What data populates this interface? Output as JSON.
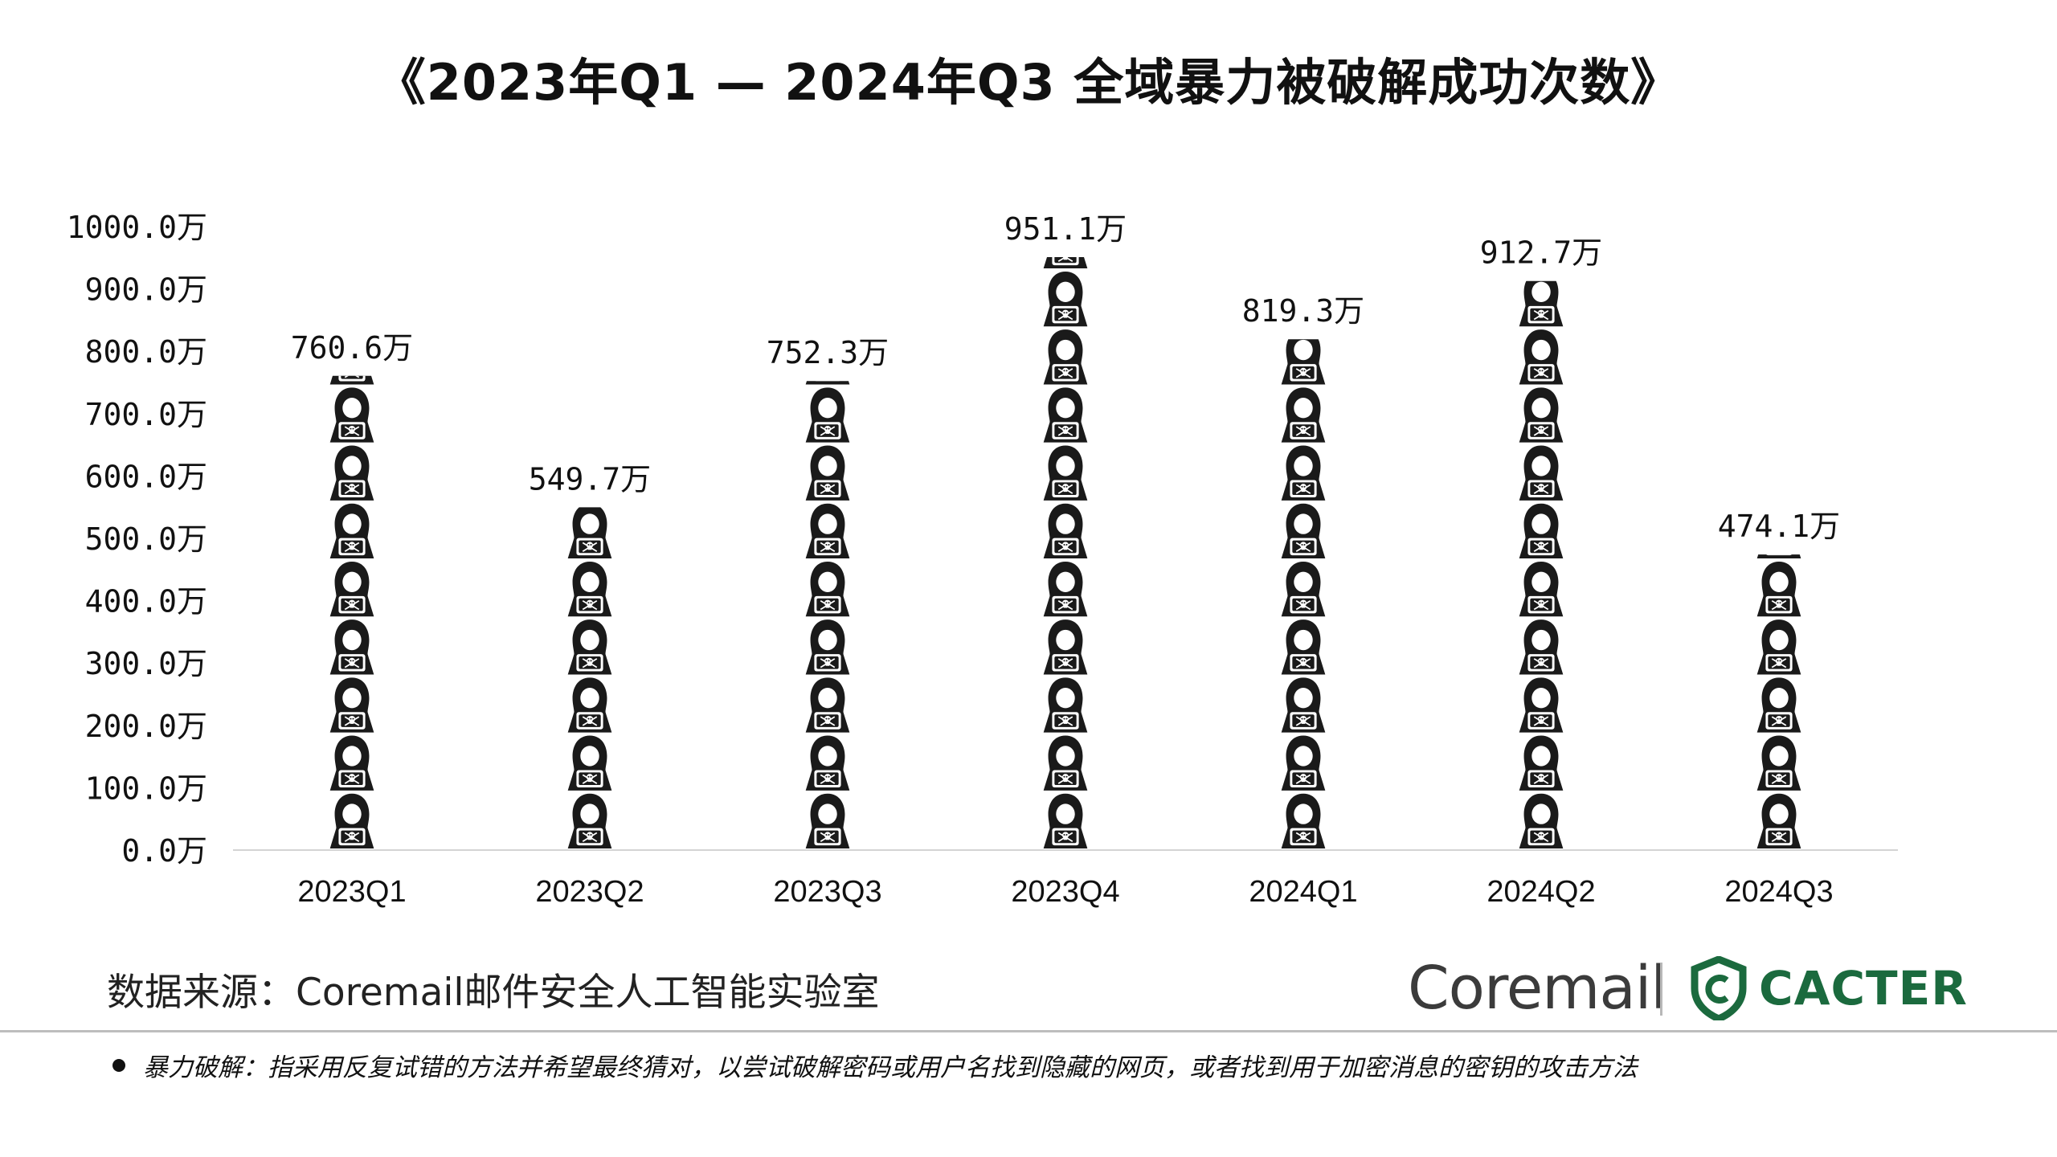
{
  "chart_data": {
    "type": "bar",
    "title": "《2023年Q1 — 2024年Q3 全域暴力被破解成功次数》",
    "categories": [
      "2023Q1",
      "2023Q2",
      "2023Q3",
      "2023Q4",
      "2024Q1",
      "2024Q2",
      "2024Q3"
    ],
    "values": [
      760.6,
      549.7,
      752.3,
      951.1,
      819.3,
      912.7,
      474.1
    ],
    "value_labels": [
      "760.6万",
      "549.7万",
      "752.3万",
      "951.1万",
      "819.3万",
      "912.7万",
      "474.1万"
    ],
    "ylim": [
      0,
      1000
    ],
    "y_ticks": [
      0,
      100,
      200,
      300,
      400,
      500,
      600,
      700,
      800,
      900,
      1000
    ],
    "y_tick_labels": [
      "0.0万",
      "100.0万",
      "200.0万",
      "300.0万",
      "400.0万",
      "500.0万",
      "600.0万",
      "700.0万",
      "800.0万",
      "900.0万",
      "1000.0万"
    ],
    "bar_style": "stacked hacker pictogram icons",
    "grid": false,
    "xlabel": "",
    "ylabel": ""
  },
  "source": "数据来源：Coremail邮件安全人工智能实验室",
  "brands": {
    "coremail": "Coremail",
    "cacter": "CACTER",
    "cacter_color": "#1b6a3e"
  },
  "footnote": "暴力破解：指采用反复试错的方法并希望最终猜对，以尝试破解密码或用户名找到隐藏的网页，或者找到用于加密消息的密钥的攻击方法"
}
